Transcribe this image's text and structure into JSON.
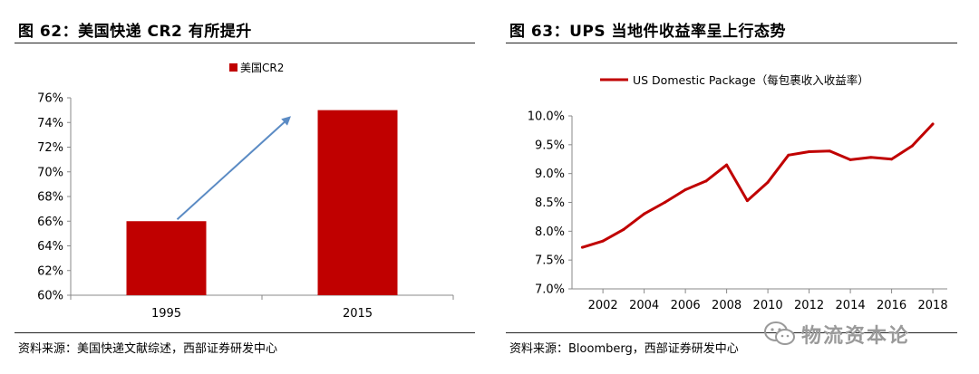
{
  "left_figure": {
    "title": "图 62：美国快递 CR2 有所提升",
    "source": "资料来源：美国快递文献综述，西部证券研发中心"
  },
  "right_figure": {
    "title": "图 63：UPS 当地件收益率呈上行态势",
    "source": "资料来源：Bloomberg，西部证券研发中心"
  },
  "watermark": {
    "text": "物流资本论",
    "icon": "wechat-icon"
  },
  "colors": {
    "bar": "#c00000",
    "line": "#c00000",
    "arrow": "#5b8bc4",
    "axis": "#888888"
  },
  "chart_data": [
    {
      "type": "bar",
      "title": "",
      "categories": [
        "1995",
        "2015"
      ],
      "series": [
        {
          "name": "美国CR2",
          "values": [
            66,
            75
          ]
        }
      ],
      "ylim": [
        60,
        76
      ],
      "yticks": [
        60,
        62,
        64,
        66,
        68,
        70,
        72,
        74,
        76
      ],
      "ytick_labels": [
        "60%",
        "62%",
        "64%",
        "66%",
        "68%",
        "70%",
        "72%",
        "74%",
        "76%"
      ],
      "xlabel": "",
      "ylabel": "",
      "legend": "top-center",
      "annotation": "arrow from 1995 bar up to 2015 bar"
    },
    {
      "type": "line",
      "title": "",
      "series": [
        {
          "name": "US Domestic Package（每包裹收入收益率）",
          "x": [
            2001,
            2002,
            2003,
            2004,
            2005,
            2006,
            2007,
            2008,
            2009,
            2010,
            2011,
            2012,
            2013,
            2014,
            2015,
            2016,
            2017,
            2018
          ],
          "values": [
            7.72,
            7.83,
            8.03,
            8.3,
            8.5,
            8.72,
            8.87,
            9.15,
            8.53,
            8.85,
            9.32,
            9.38,
            9.39,
            9.24,
            9.28,
            9.25,
            9.48,
            9.86
          ]
        }
      ],
      "xlim": [
        2000.5,
        2018.7
      ],
      "xticks": [
        2002,
        2004,
        2006,
        2008,
        2010,
        2012,
        2014,
        2016,
        2018
      ],
      "xtick_labels": [
        "2002",
        "2004",
        "2006",
        "2008",
        "2010",
        "2012",
        "2014",
        "2016",
        "2018"
      ],
      "ylim": [
        7.0,
        10.0
      ],
      "yticks": [
        7.0,
        7.5,
        8.0,
        8.5,
        9.0,
        9.5,
        10.0
      ],
      "ytick_labels": [
        "7.0%",
        "7.5%",
        "8.0%",
        "8.5%",
        "9.0%",
        "9.5%",
        "10.0%"
      ],
      "xlabel": "",
      "ylabel": "",
      "legend": "top-center"
    }
  ]
}
